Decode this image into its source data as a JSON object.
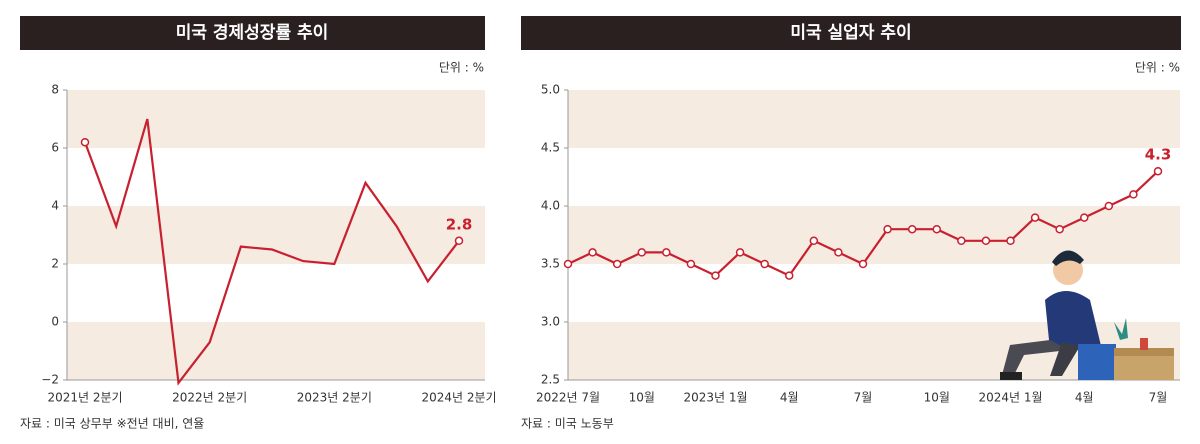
{
  "chart_data": [
    {
      "type": "line",
      "title": "미국 경제성장률 추이",
      "unit": "단위 : %",
      "source": "자료 : 미국 상무부 ※전년 대비, 연율",
      "categories": [
        "2021년 2분기",
        null,
        null,
        null,
        "2022년 2분기",
        null,
        null,
        null,
        "2023년 2분기",
        null,
        null,
        null,
        "2024년 2분기"
      ],
      "values": [
        6.2,
        3.3,
        7.0,
        -2.1,
        -0.7,
        2.6,
        2.5,
        2.1,
        2.0,
        4.8,
        3.3,
        1.4,
        2.8
      ],
      "color": "#c8202f",
      "markers": "ends",
      "ylim": [
        -2,
        8
      ],
      "yticks": [
        {
          "value": -2,
          "label": "−2"
        },
        0,
        2,
        4,
        6,
        8
      ],
      "bands": true
    },
    {
      "type": "line",
      "title": "미국 실업자 추이",
      "unit": "단위 : %",
      "source": "자료 : 미국 노동부",
      "categories": [
        "2022년 7월",
        null,
        null,
        "10월",
        null,
        null,
        "2023년 1월",
        null,
        null,
        "4월",
        null,
        null,
        "7월",
        null,
        null,
        "10월",
        null,
        null,
        "2024년 1월",
        null,
        null,
        "4월",
        null,
        null,
        "7월"
      ],
      "values": [
        3.5,
        3.6,
        3.5,
        3.6,
        3.6,
        3.5,
        3.4,
        3.6,
        3.5,
        3.4,
        3.7,
        3.6,
        3.5,
        3.8,
        3.8,
        3.8,
        3.7,
        3.7,
        3.7,
        3.9,
        3.8,
        3.9,
        4.0,
        4.1,
        4.3
      ],
      "color": "#c8202f",
      "markers": "all",
      "ylim": [
        2.5,
        5.0
      ],
      "yticks": [
        2.5,
        {
          "value": 3,
          "label": "3.0"
        },
        3.5,
        {
          "value": 4,
          "label": "4.0"
        },
        4.5,
        {
          "value": 5,
          "label": "5.0"
        }
      ],
      "bands": true
    }
  ]
}
